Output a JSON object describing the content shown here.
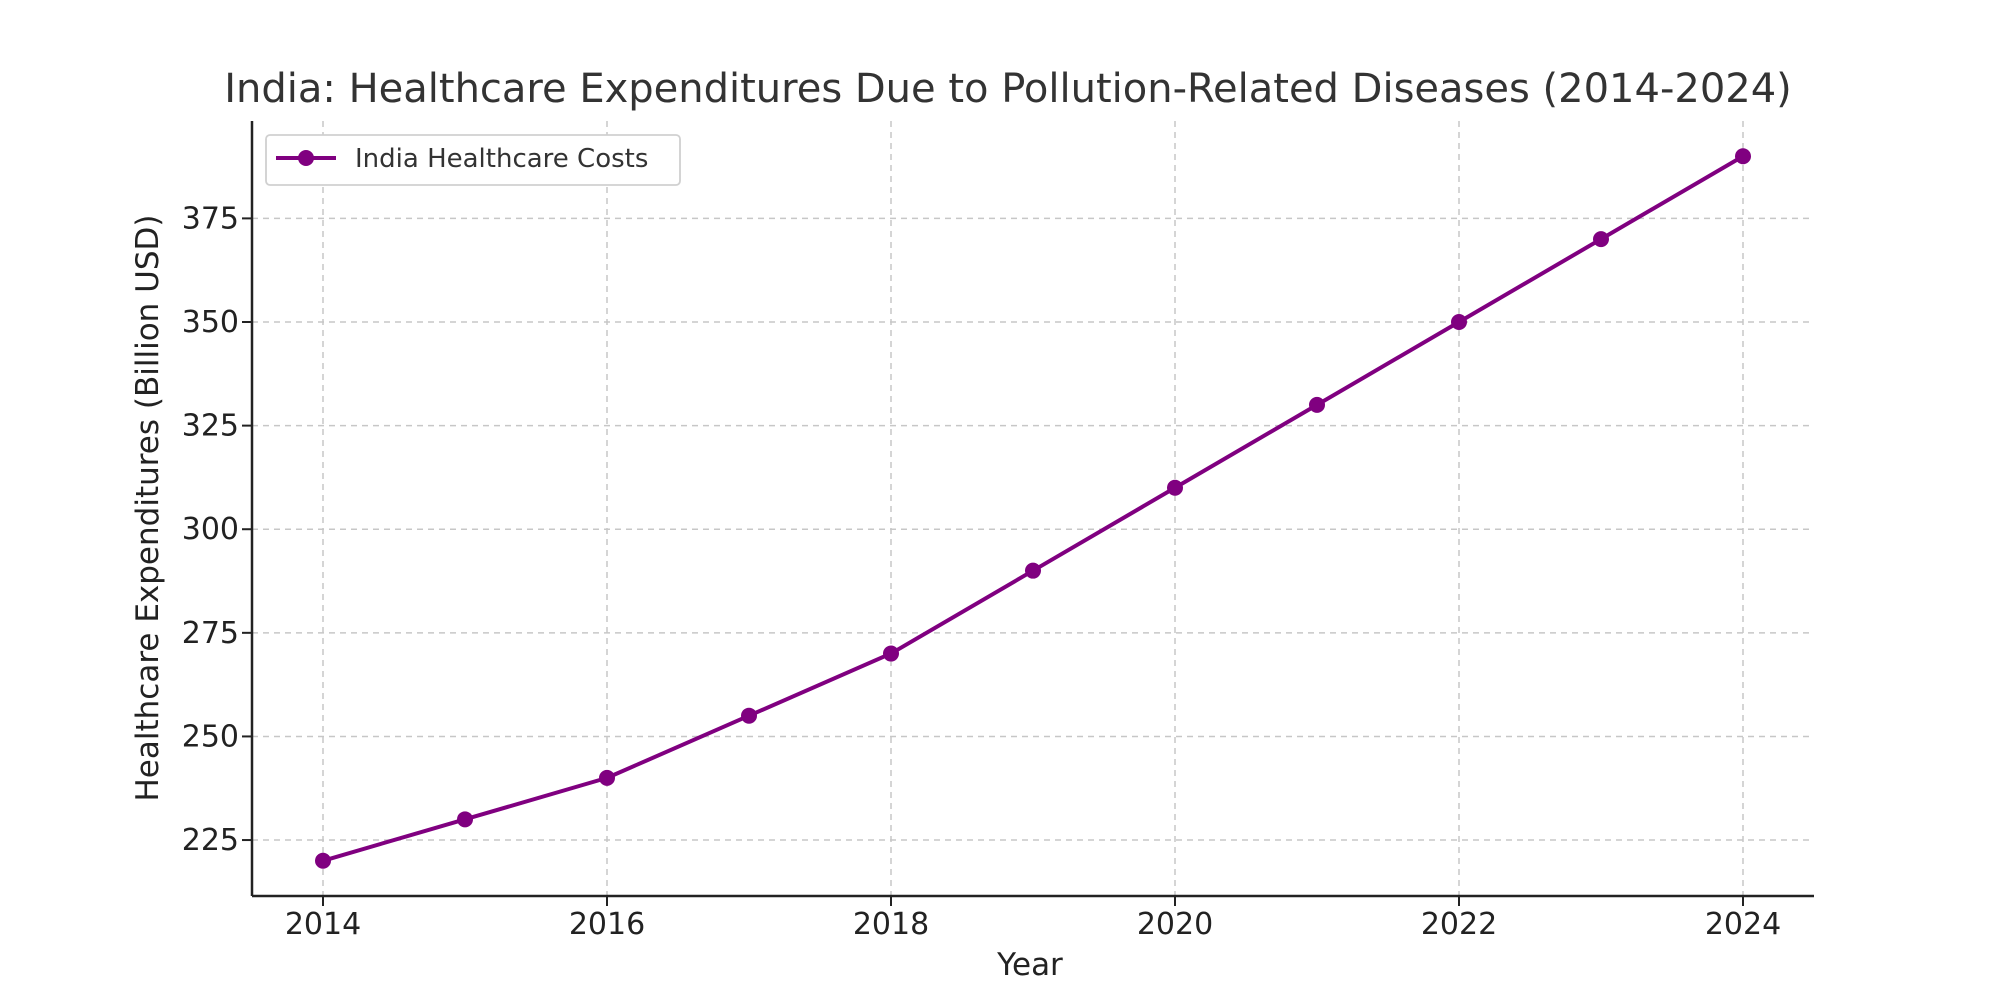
{
  "chart_data": {
    "type": "line",
    "title": "India: Healthcare Expenditures Due to Pollution-Related Diseases (2014-2024)",
    "xlabel": "Year",
    "ylabel": "Healthcare Expenditures (Billion USD)",
    "x": [
      2014,
      2015,
      2016,
      2017,
      2018,
      2019,
      2020,
      2021,
      2022,
      2023,
      2024
    ],
    "series": [
      {
        "name": "India Healthcare Costs",
        "values": [
          220,
          230,
          240,
          255,
          270,
          290,
          310,
          330,
          350,
          370,
          390
        ],
        "color": "#800080",
        "marker": "circle"
      }
    ],
    "xlim": [
      2013.5,
      2024.5
    ],
    "ylim": [
      211.5,
      398.5
    ],
    "xticks": [
      2014,
      2016,
      2018,
      2020,
      2022,
      2024
    ],
    "yticks": [
      225,
      250,
      275,
      300,
      325,
      350,
      375
    ],
    "grid": true,
    "legend_position": "top-left"
  }
}
